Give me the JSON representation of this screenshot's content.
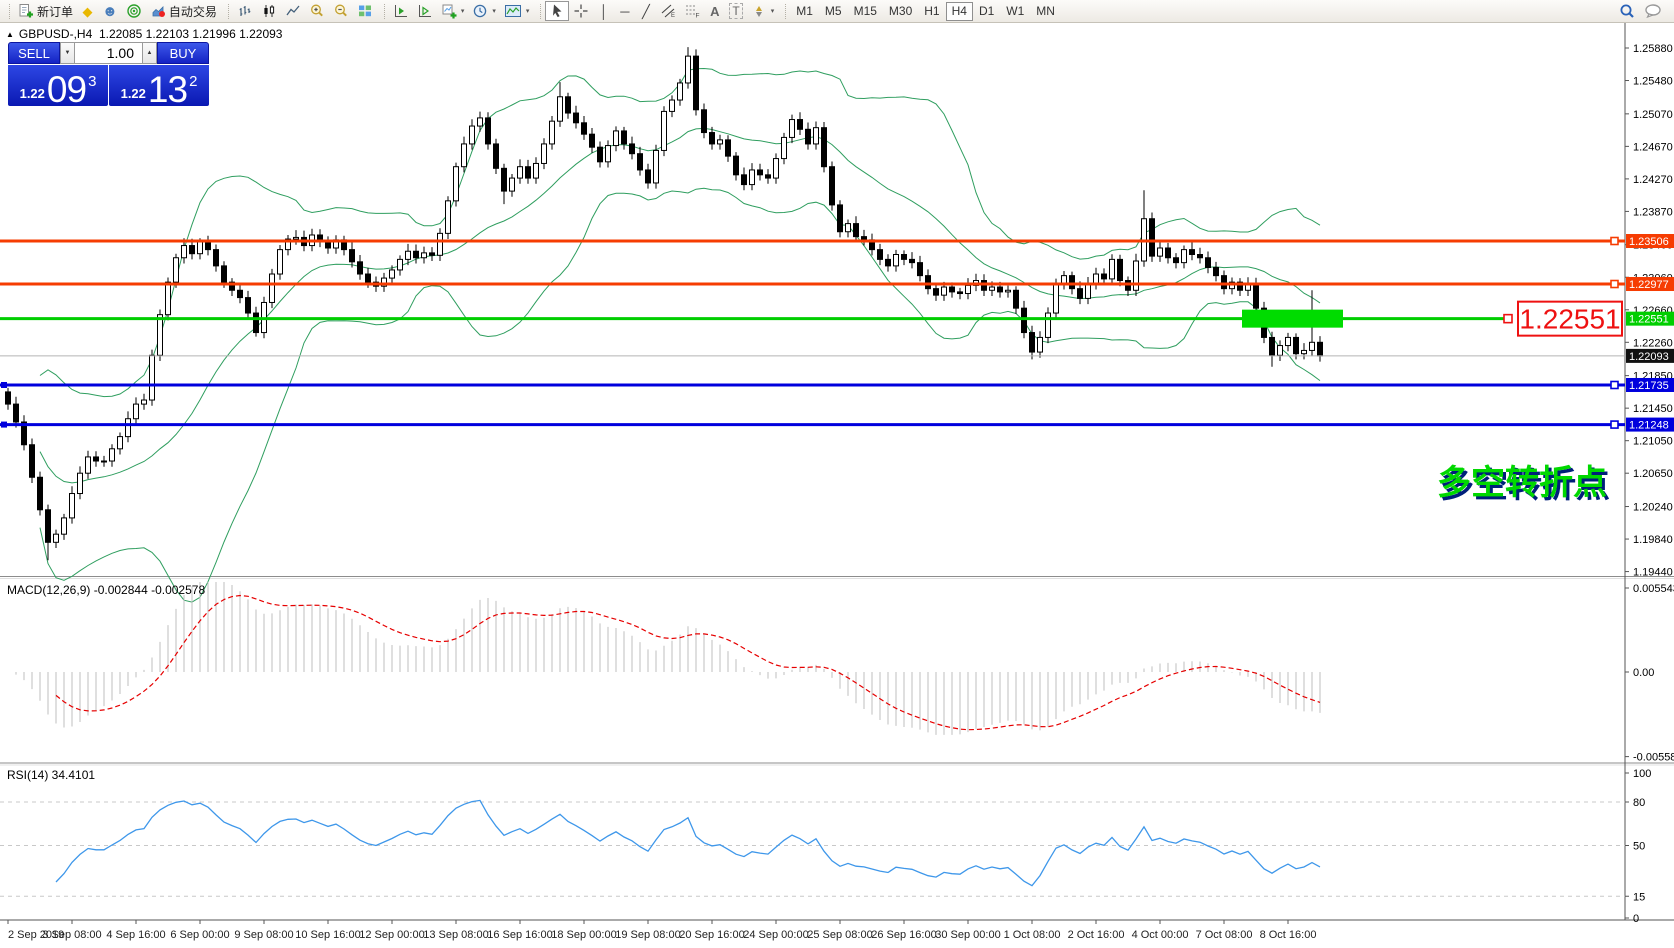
{
  "toolbar": {
    "new_order_label": "新订单",
    "autotrade_label": "自动交易",
    "timeframes": [
      "M1",
      "M5",
      "M15",
      "M30",
      "H1",
      "H4",
      "D1",
      "W1",
      "MN"
    ],
    "active_timeframe": "H4"
  },
  "icons": {
    "collapse": "▲",
    "metaeditor": "◆",
    "profile": "☻",
    "vline": "│",
    "hline": "─",
    "trendline": "╱",
    "text_tool": "A",
    "label_tool": "T",
    "caret": "▾",
    "spin_up": "▲",
    "spin_down": "▼"
  },
  "symbol_header": {
    "symbol": "GBPUSD-,H4",
    "ohlc": "1.22085 1.22103 1.21996 1.22093"
  },
  "trade_panel": {
    "sell_label": "SELL",
    "buy_label": "BUY",
    "volume": "1.00",
    "sell_price_small": "1.22",
    "sell_price_big": "09",
    "sell_price_sup": "3",
    "buy_price_small": "1.22",
    "buy_price_big": "13",
    "buy_price_sup": "2"
  },
  "chart_data": {
    "type": "candlestick",
    "symbol": "GBPUSD-",
    "timeframe": "H4",
    "first_open": 1.2165,
    "closes": [
      1.215,
      1.2128,
      1.21,
      1.206,
      1.202,
      1.198,
      1.199,
      1.201,
      1.204,
      1.2065,
      1.2085,
      1.208,
      1.208,
      1.2095,
      1.211,
      1.2132,
      1.215,
      1.2155,
      1.221,
      1.226,
      1.23,
      1.233,
      1.2345,
      1.2335,
      1.235,
      1.234,
      1.232,
      1.23,
      1.229,
      1.2281,
      1.2262,
      1.2238,
      1.2275,
      1.231,
      1.234,
      1.2353,
      1.2355,
      1.2345,
      1.2358,
      1.235,
      1.2342,
      1.2352,
      1.234,
      1.2325,
      1.231,
      1.23,
      1.2295,
      1.2305,
      1.2315,
      1.2328,
      1.2338,
      1.233,
      1.2336,
      1.2333,
      1.236,
      1.24,
      1.2442,
      1.247,
      1.2492,
      1.2502,
      1.247,
      1.244,
      1.2412,
      1.2428,
      1.2442,
      1.2428,
      1.2446,
      1.247,
      1.2498,
      1.2528,
      1.2508,
      1.2496,
      1.2482,
      1.2466,
      1.2448,
      1.2468,
      1.2486,
      1.247,
      1.2458,
      1.2438,
      1.2422,
      1.2462,
      1.251,
      1.2524,
      1.2545,
      1.2578,
      1.2512,
      1.2484,
      1.247,
      1.2475,
      1.2455,
      1.2432,
      1.242,
      1.2438,
      1.2432,
      1.2428,
      1.2452,
      1.2478,
      1.25,
      1.2488,
      1.247,
      1.249,
      1.2442,
      1.2395,
      1.2362,
      1.2372,
      1.2356,
      1.2352,
      1.234,
      1.2328,
      1.232,
      1.2334,
      1.2328,
      1.2324,
      1.2308,
      1.2292,
      1.2284,
      1.2294,
      1.2288,
      1.2286,
      1.2296,
      1.2302,
      1.229,
      1.2294,
      1.2288,
      1.229,
      1.2268,
      1.2238,
      1.2214,
      1.2232,
      1.2262,
      1.2298,
      1.2308,
      1.2292,
      1.228,
      1.2298,
      1.231,
      1.2304,
      1.2328,
      1.2302,
      1.229,
      1.2326,
      1.2378,
      1.2332,
      1.2342,
      1.233,
      1.2324,
      1.234,
      1.2334,
      1.233,
      1.2318,
      1.2308,
      1.2292,
      1.23,
      1.229,
      1.2297,
      1.2268,
      1.2232,
      1.221,
      1.2222,
      1.2232,
      1.2212,
      1.2216,
      1.2226,
      1.22093
    ],
    "wick_overrides": {
      "5": {
        "low": 1.1958
      },
      "24": {
        "high": 1.2354
      },
      "31": {
        "low": 1.2233
      },
      "62": {
        "low": 1.2396
      },
      "69": {
        "high": 1.2546
      },
      "85": {
        "high": 1.2589
      },
      "98": {
        "high": 1.2506
      },
      "128": {
        "low": 1.2205
      },
      "142": {
        "high": 1.2413
      },
      "158": {
        "low": 1.2196
      },
      "163": {
        "high": 1.229
      }
    },
    "price_ticks": [
      "1.25880",
      "1.25480",
      "1.25070",
      "1.24670",
      "1.24270",
      "1.23870",
      "1.23460",
      "1.23060",
      "1.22660",
      "1.22260",
      "1.21850",
      "1.21450",
      "1.21050",
      "1.20650",
      "1.20240",
      "1.19840",
      "1.19440"
    ],
    "time_labels": [
      "2 Sep 2019",
      "3 Sep 08:00",
      "4 Sep 16:00",
      "6 Sep 00:00",
      "9 Sep 08:00",
      "10 Sep 16:00",
      "12 Sep 00:00",
      "13 Sep 08:00",
      "16 Sep 16:00",
      "18 Sep 00:00",
      "19 Sep 08:00",
      "20 Sep 16:00",
      "24 Sep 00:00",
      "25 Sep 08:00",
      "26 Sep 16:00",
      "30 Sep 00:00",
      "1 Oct 08:00",
      "2 Oct 16:00",
      "4 Oct 00:00",
      "7 Oct 08:00",
      "8 Oct 16:00"
    ],
    "hlines": [
      {
        "price": 1.23506,
        "label": "1.23506",
        "color": "#f63c02"
      },
      {
        "price": 1.22977,
        "label": "1.22977",
        "color": "#f63c02"
      },
      {
        "price": 1.22551,
        "label": "1.22551",
        "color": "#00ce00"
      },
      {
        "price": 1.21735,
        "label": "1.21735",
        "color": "#0000dd"
      },
      {
        "price": 1.21248,
        "label": "1.21248",
        "color": "#0000dd"
      }
    ],
    "current_price": {
      "value": 1.22093,
      "label": "1.22093"
    },
    "indicators": {
      "bollinger": {
        "period": 20,
        "deviation": 2,
        "color": "#2f9e5f"
      },
      "macd": {
        "label": "MACD(12,26,9) -0.002844 -0.002578",
        "fast": 12,
        "slow": 26,
        "signal": 9,
        "axis_values": [
          0.005543,
          0,
          -0.005583
        ],
        "axis_ticks": [
          "0.005543",
          "0.00",
          "-0.005583"
        ],
        "hist_color": "#bfbfbf",
        "signal_color": "#e60000"
      },
      "rsi": {
        "label": "RSI(14) 34.4101",
        "period": 14,
        "value": 34.4101,
        "levels": [
          80,
          50,
          15
        ],
        "axis_ticks": [
          100,
          80,
          50,
          15,
          0
        ],
        "color": "#3e97ea"
      }
    },
    "annotations": {
      "price_callout": {
        "text": "1.22551",
        "color": "#ee1111"
      },
      "turning_point": {
        "text": "多空转折点",
        "color": "#00d800",
        "shadow_color": "#001f7a"
      },
      "highlight_box": {
        "color": "#00dc00",
        "price": 1.22551
      }
    }
  }
}
